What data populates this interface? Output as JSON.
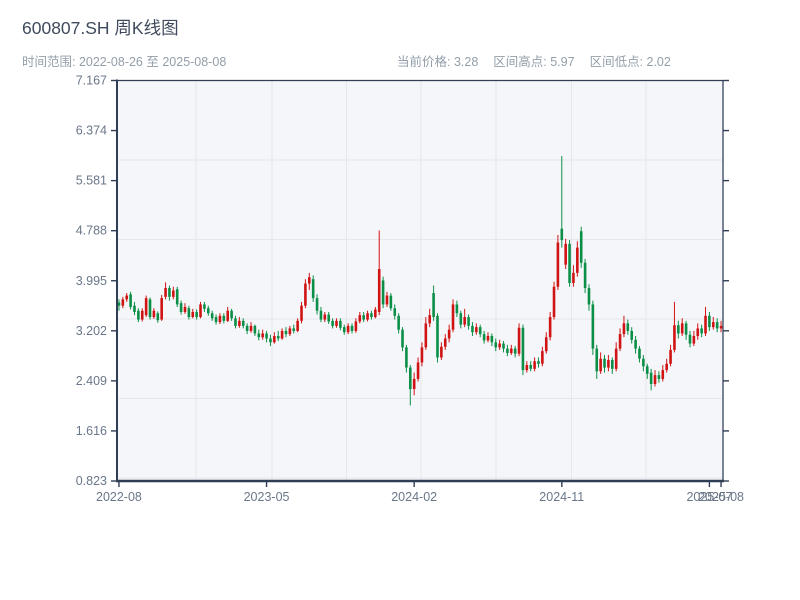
{
  "header": {
    "title": "600807.SH 周K线图",
    "range_label": "时间范围: 2022-08-26 至 2025-08-08",
    "stats": [
      "当前价格: 3.28",
      "区间高点: 5.97",
      "区间低点: 2.02"
    ]
  },
  "chart_data": {
    "type": "candlestick",
    "title": "600807.SH 周K线图",
    "period": "weekly",
    "start_date": "2022-08-26",
    "end_date": "2025-08-08",
    "current_price": 3.28,
    "range_high": 5.97,
    "range_low": 2.02,
    "up_color": "#d01414",
    "down_color": "#0b8f47",
    "plot_bg": "#f5f6f9",
    "grid_on": true,
    "ylim": [
      0.823,
      7.167
    ],
    "y_ticks": [
      7.167,
      6.374,
      5.581,
      4.788,
      3.995,
      3.202,
      2.409,
      1.616,
      0.823
    ],
    "x_ticks": [
      {
        "index": 0,
        "label": "2022-08"
      },
      {
        "index": 38,
        "label": "2023-05"
      },
      {
        "index": 76,
        "label": "2024-02"
      },
      {
        "index": 114,
        "label": "2024-11"
      },
      {
        "index": 152,
        "label": "2025-07"
      },
      {
        "index": 155,
        "label": "2025-08"
      }
    ],
    "ohlc_format": [
      "open",
      "high",
      "low",
      "close"
    ],
    "candles": [
      [
        3.65,
        3.7,
        3.52,
        3.6
      ],
      [
        3.6,
        3.74,
        3.56,
        3.7
      ],
      [
        3.7,
        3.8,
        3.66,
        3.76
      ],
      [
        3.78,
        3.82,
        3.54,
        3.58
      ],
      [
        3.6,
        3.66,
        3.45,
        3.5
      ],
      [
        3.52,
        3.56,
        3.34,
        3.38
      ],
      [
        3.38,
        3.56,
        3.35,
        3.52
      ],
      [
        3.45,
        3.76,
        3.42,
        3.72
      ],
      [
        3.7,
        3.73,
        3.38,
        3.42
      ],
      [
        3.42,
        3.56,
        3.39,
        3.52
      ],
      [
        3.48,
        3.51,
        3.33,
        3.37
      ],
      [
        3.38,
        3.77,
        3.36,
        3.72
      ],
      [
        3.74,
        3.97,
        3.7,
        3.88
      ],
      [
        3.88,
        3.92,
        3.68,
        3.74
      ],
      [
        3.74,
        3.9,
        3.7,
        3.84
      ],
      [
        3.86,
        3.9,
        3.58,
        3.62
      ],
      [
        3.64,
        3.68,
        3.46,
        3.5
      ],
      [
        3.5,
        3.64,
        3.47,
        3.58
      ],
      [
        3.56,
        3.6,
        3.38,
        3.42
      ],
      [
        3.42,
        3.55,
        3.4,
        3.5
      ],
      [
        3.5,
        3.54,
        3.38,
        3.42
      ],
      [
        3.42,
        3.66,
        3.4,
        3.62
      ],
      [
        3.62,
        3.66,
        3.5,
        3.55
      ],
      [
        3.56,
        3.6,
        3.44,
        3.48
      ],
      [
        3.48,
        3.52,
        3.36,
        3.4
      ],
      [
        3.42,
        3.46,
        3.3,
        3.34
      ],
      [
        3.34,
        3.48,
        3.31,
        3.44
      ],
      [
        3.44,
        3.48,
        3.32,
        3.36
      ],
      [
        3.36,
        3.58,
        3.34,
        3.52
      ],
      [
        3.52,
        3.55,
        3.36,
        3.4
      ],
      [
        3.4,
        3.44,
        3.24,
        3.28
      ],
      [
        3.28,
        3.42,
        3.25,
        3.36
      ],
      [
        3.36,
        3.4,
        3.24,
        3.28
      ],
      [
        3.28,
        3.32,
        3.15,
        3.2
      ],
      [
        3.2,
        3.34,
        3.17,
        3.28
      ],
      [
        3.28,
        3.3,
        3.12,
        3.16
      ],
      [
        3.16,
        3.22,
        3.05,
        3.1
      ],
      [
        3.1,
        3.22,
        3.06,
        3.16
      ],
      [
        3.16,
        3.2,
        3.02,
        3.08
      ],
      [
        3.08,
        3.14,
        2.96,
        3.02
      ],
      [
        3.02,
        3.18,
        3.0,
        3.12
      ],
      [
        3.12,
        3.2,
        3.04,
        3.08
      ],
      [
        3.08,
        3.24,
        3.06,
        3.2
      ],
      [
        3.2,
        3.26,
        3.1,
        3.15
      ],
      [
        3.15,
        3.28,
        3.12,
        3.24
      ],
      [
        3.24,
        3.3,
        3.16,
        3.2
      ],
      [
        3.2,
        3.4,
        3.18,
        3.36
      ],
      [
        3.36,
        3.66,
        3.32,
        3.6
      ],
      [
        3.6,
        4.02,
        3.56,
        3.95
      ],
      [
        3.95,
        4.12,
        3.85,
        4.05
      ],
      [
        4.02,
        4.08,
        3.66,
        3.72
      ],
      [
        3.72,
        3.78,
        3.46,
        3.52
      ],
      [
        3.52,
        3.58,
        3.34,
        3.38
      ],
      [
        3.38,
        3.5,
        3.34,
        3.46
      ],
      [
        3.46,
        3.5,
        3.31,
        3.35
      ],
      [
        3.36,
        3.4,
        3.24,
        3.28
      ],
      [
        3.28,
        3.4,
        3.25,
        3.36
      ],
      [
        3.36,
        3.4,
        3.21,
        3.25
      ],
      [
        3.26,
        3.3,
        3.14,
        3.18
      ],
      [
        3.18,
        3.32,
        3.15,
        3.28
      ],
      [
        3.28,
        3.32,
        3.16,
        3.2
      ],
      [
        3.2,
        3.4,
        3.17,
        3.35
      ],
      [
        3.35,
        3.5,
        3.32,
        3.45
      ],
      [
        3.45,
        3.5,
        3.34,
        3.38
      ],
      [
        3.38,
        3.52,
        3.35,
        3.48
      ],
      [
        3.48,
        3.52,
        3.38,
        3.42
      ],
      [
        3.42,
        3.58,
        3.4,
        3.54
      ],
      [
        3.5,
        4.79,
        3.45,
        4.18
      ],
      [
        4.0,
        4.06,
        3.56,
        3.62
      ],
      [
        3.62,
        3.82,
        3.58,
        3.76
      ],
      [
        3.76,
        3.8,
        3.52,
        3.56
      ],
      [
        3.56,
        3.62,
        3.38,
        3.44
      ],
      [
        3.44,
        3.48,
        3.16,
        3.22
      ],
      [
        3.22,
        3.26,
        2.88,
        2.94
      ],
      [
        2.94,
        2.98,
        2.54,
        2.62
      ],
      [
        2.62,
        2.66,
        2.02,
        2.28
      ],
      [
        2.28,
        2.54,
        2.18,
        2.44
      ],
      [
        2.44,
        2.78,
        2.4,
        2.7
      ],
      [
        2.7,
        3.02,
        2.64,
        2.94
      ],
      [
        2.94,
        3.42,
        2.9,
        3.32
      ],
      [
        3.32,
        3.55,
        3.26,
        3.45
      ],
      [
        3.8,
        3.92,
        3.36,
        3.42
      ],
      [
        3.44,
        3.48,
        2.7,
        2.78
      ],
      [
        2.78,
        3.02,
        2.74,
        2.95
      ],
      [
        2.95,
        3.15,
        2.9,
        3.08
      ],
      [
        3.08,
        3.3,
        3.02,
        3.22
      ],
      [
        3.22,
        3.7,
        3.18,
        3.62
      ],
      [
        3.62,
        3.68,
        3.42,
        3.48
      ],
      [
        3.48,
        3.52,
        3.24,
        3.3
      ],
      [
        3.3,
        3.55,
        3.26,
        3.42
      ],
      [
        3.42,
        3.46,
        3.22,
        3.28
      ],
      [
        3.28,
        3.34,
        3.12,
        3.18
      ],
      [
        3.18,
        3.32,
        3.14,
        3.26
      ],
      [
        3.26,
        3.3,
        3.1,
        3.15
      ],
      [
        3.15,
        3.2,
        3.0,
        3.05
      ],
      [
        3.05,
        3.18,
        3.02,
        3.12
      ],
      [
        3.12,
        3.16,
        2.96,
        3.02
      ],
      [
        3.02,
        3.08,
        2.88,
        2.94
      ],
      [
        2.94,
        3.06,
        2.9,
        3.0
      ],
      [
        3.0,
        3.04,
        2.86,
        2.92
      ],
      [
        2.92,
        2.98,
        2.8,
        2.85
      ],
      [
        2.85,
        2.98,
        2.82,
        2.92
      ],
      [
        2.92,
        2.96,
        2.78,
        2.84
      ],
      [
        2.84,
        3.32,
        2.8,
        3.25
      ],
      [
        3.25,
        3.3,
        2.5,
        2.58
      ],
      [
        2.58,
        2.72,
        2.54,
        2.66
      ],
      [
        2.66,
        2.72,
        2.56,
        2.6
      ],
      [
        2.6,
        2.78,
        2.56,
        2.72
      ],
      [
        2.72,
        2.78,
        2.62,
        2.68
      ],
      [
        2.68,
        2.95,
        2.64,
        2.88
      ],
      [
        2.88,
        3.18,
        2.84,
        3.1
      ],
      [
        3.1,
        3.5,
        3.05,
        3.42
      ],
      [
        3.42,
        3.98,
        3.38,
        3.9
      ],
      [
        3.9,
        4.72,
        3.85,
        4.6
      ],
      [
        4.82,
        5.97,
        4.52,
        4.64
      ],
      [
        4.25,
        4.66,
        4.18,
        4.58
      ],
      [
        4.58,
        4.64,
        3.9,
        3.96
      ],
      [
        3.96,
        4.24,
        3.9,
        4.12
      ],
      [
        4.12,
        4.62,
        4.06,
        4.52
      ],
      [
        4.78,
        4.85,
        4.2,
        4.28
      ],
      [
        4.28,
        4.34,
        3.8,
        3.88
      ],
      [
        3.88,
        3.94,
        3.52,
        3.62
      ],
      [
        3.62,
        3.68,
        2.82,
        2.92
      ],
      [
        2.92,
        2.98,
        2.44,
        2.56
      ],
      [
        2.56,
        2.86,
        2.52,
        2.76
      ],
      [
        2.76,
        2.82,
        2.54,
        2.62
      ],
      [
        2.62,
        2.82,
        2.56,
        2.74
      ],
      [
        2.74,
        2.78,
        2.52,
        2.6
      ],
      [
        2.6,
        3.02,
        2.56,
        2.92
      ],
      [
        2.92,
        3.24,
        2.88,
        3.15
      ],
      [
        3.15,
        3.44,
        3.1,
        3.32
      ],
      [
        3.32,
        3.38,
        3.14,
        3.2
      ],
      [
        3.2,
        3.26,
        3.0,
        3.06
      ],
      [
        3.06,
        3.12,
        2.84,
        2.92
      ],
      [
        2.92,
        2.96,
        2.7,
        2.76
      ],
      [
        2.76,
        2.82,
        2.56,
        2.64
      ],
      [
        2.64,
        2.68,
        2.44,
        2.52
      ],
      [
        2.54,
        2.6,
        2.26,
        2.36
      ],
      [
        2.36,
        2.58,
        2.32,
        2.5
      ],
      [
        2.5,
        2.56,
        2.38,
        2.44
      ],
      [
        2.44,
        2.66,
        2.4,
        2.58
      ],
      [
        2.58,
        2.76,
        2.54,
        2.68
      ],
      [
        2.68,
        2.98,
        2.64,
        2.9
      ],
      [
        2.9,
        3.66,
        2.86,
        3.29
      ],
      [
        3.29,
        3.36,
        3.08,
        3.16
      ],
      [
        3.16,
        3.4,
        3.12,
        3.32
      ],
      [
        3.32,
        3.36,
        3.06,
        3.14
      ],
      [
        3.14,
        3.2,
        2.94,
        3.0
      ],
      [
        3.0,
        3.2,
        2.96,
        3.12
      ],
      [
        3.12,
        3.32,
        3.06,
        3.24
      ],
      [
        3.24,
        3.3,
        3.1,
        3.16
      ],
      [
        3.16,
        3.58,
        3.12,
        3.44
      ],
      [
        3.44,
        3.5,
        3.2,
        3.26
      ],
      [
        3.26,
        3.42,
        3.22,
        3.34
      ],
      [
        3.34,
        3.4,
        3.18,
        3.24
      ],
      [
        3.24,
        3.36,
        3.18,
        3.28
      ]
    ]
  }
}
